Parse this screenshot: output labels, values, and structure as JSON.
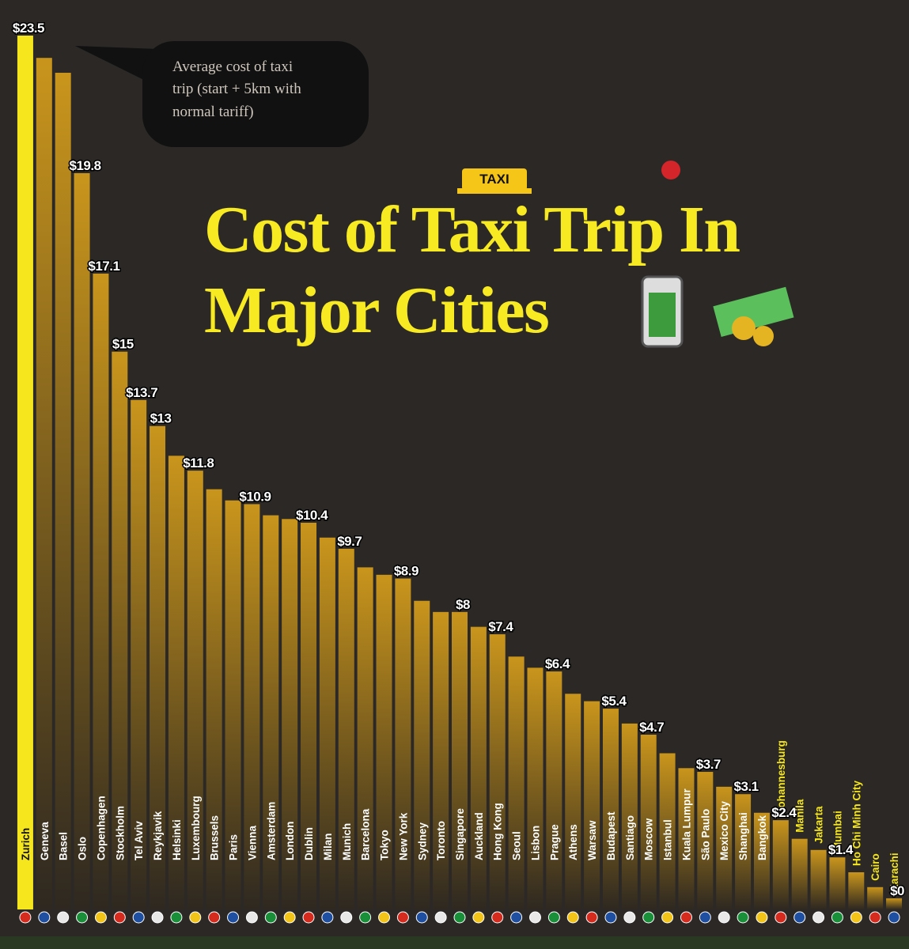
{
  "chart_data": {
    "type": "bar",
    "title_lines": [
      "Cost of Taxi Trip In",
      "Major Cities"
    ],
    "note_lines": [
      "Average cost of taxi",
      "trip (start + 5km with",
      "normal tariff)"
    ],
    "sign": "TAXI",
    "categories": [
      "Zurich",
      "Geneva",
      "Basel",
      "Oslo",
      "Copenhagen",
      "Stockholm",
      "Tel Aviv",
      "Reykjavik",
      "Helsinki",
      "Luxembourg",
      "Brussels",
      "Paris",
      "Vienna",
      "Amsterdam",
      "London",
      "Dublin",
      "Milan",
      "Munich",
      "Barcelona",
      "Tokyo",
      "New York",
      "Sydney",
      "Toronto",
      "Singapore",
      "Auckland",
      "Hong Kong",
      "Seoul",
      "Lisbon",
      "Prague",
      "Athens",
      "Warsaw",
      "Budapest",
      "Santiago",
      "Moscow",
      "Istanbul",
      "Kuala Lumpur",
      "São Paulo",
      "Mexico City",
      "Shanghai",
      "Bangkok",
      "Johannesburg",
      "Manila",
      "Jakarta",
      "Mumbai",
      "Ho Chi Minh City",
      "Cairo",
      "Karachi"
    ],
    "values": [
      23.5,
      22.9,
      22.5,
      19.8,
      17.1,
      15,
      13.7,
      13,
      12.2,
      11.8,
      11.3,
      11.0,
      10.9,
      10.6,
      10.5,
      10.4,
      10.0,
      9.7,
      9.2,
      9.0,
      8.9,
      8.3,
      8.0,
      8,
      7.6,
      7.4,
      6.8,
      6.5,
      6.4,
      5.8,
      5.6,
      5.4,
      5.0,
      4.7,
      4.2,
      3.8,
      3.7,
      3.3,
      3.1,
      2.6,
      2.4,
      1.9,
      1.6,
      1.4,
      1.0,
      0.6,
      0.3
    ],
    "value_labels": [
      "$23.5",
      null,
      null,
      "$19.8",
      "$17.1",
      "$15",
      "$13.7",
      "$13",
      null,
      "$11.8",
      null,
      null,
      "$10.9",
      null,
      null,
      "$10.4",
      null,
      "$9.7",
      null,
      null,
      "$8.9",
      null,
      null,
      "$8",
      null,
      "$7.4",
      null,
      null,
      "$6.4",
      null,
      null,
      "$5.4",
      null,
      "$4.7",
      null,
      null,
      "$3.7",
      null,
      "$3.1",
      null,
      "$2.4",
      null,
      null,
      "$1.4",
      null,
      null,
      "$0"
    ],
    "color": "#c9951c",
    "highlight_color": "#f5e61e"
  }
}
